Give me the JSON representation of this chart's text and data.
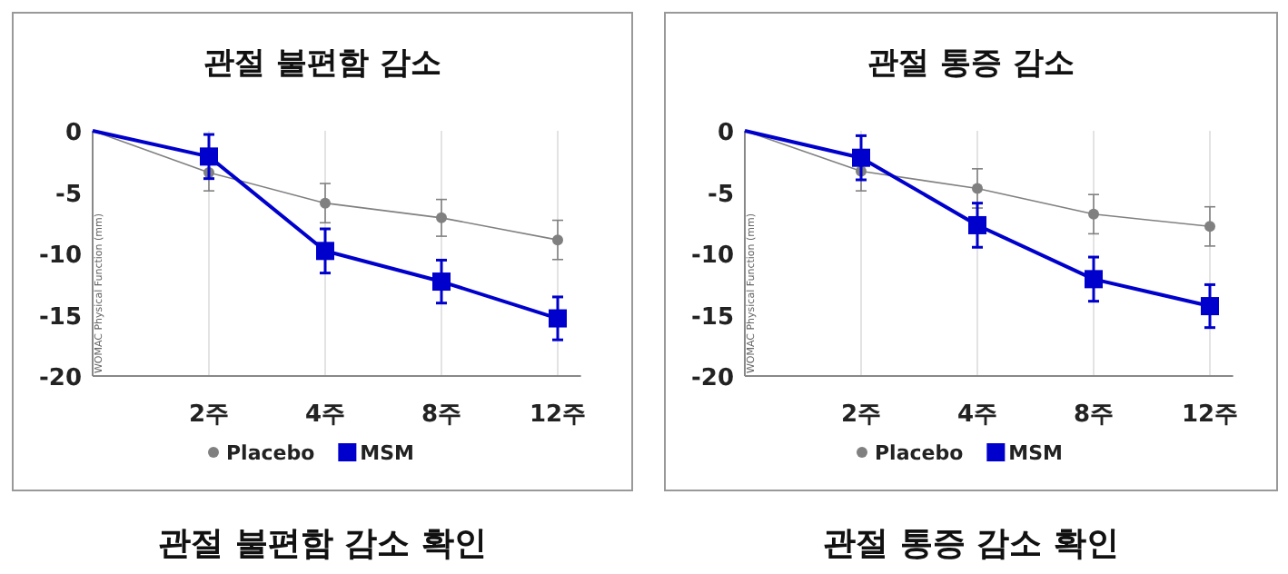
{
  "chart_data": [
    {
      "type": "line",
      "title": "관절 불편함 감소",
      "ylabel": "WOMAC Physical Function (mm)",
      "categories": [
        null,
        "2주",
        "4주",
        "8주",
        "12주"
      ],
      "ylim": [
        -20,
        0
      ],
      "yticks": [
        0,
        -5,
        -10,
        -15,
        -20
      ],
      "grid": "x",
      "legend": "bottom",
      "annotations": [
        "관절 불편함 감소 확인"
      ],
      "series": [
        {
          "name": "Placebo",
          "color": "#808080",
          "marker": "circle",
          "values": [
            0,
            -3.4,
            -5.9,
            -7.1,
            -8.9
          ],
          "errors": [
            null,
            1.5,
            1.6,
            1.5,
            1.6
          ]
        },
        {
          "name": "MSM",
          "color": "#0000cc",
          "marker": "square",
          "values": [
            0,
            -2.1,
            -9.8,
            -12.3,
            -15.3
          ],
          "errors": [
            null,
            1.8,
            1.8,
            1.75,
            1.75
          ]
        }
      ]
    },
    {
      "type": "line",
      "title": "관절 통증 감소",
      "ylabel": "WOMAC Physical Function (mm)",
      "categories": [
        null,
        "2주",
        "4주",
        "8주",
        "12주"
      ],
      "ylim": [
        -20,
        0
      ],
      "yticks": [
        0,
        -5,
        -10,
        -15,
        -20
      ],
      "grid": "x",
      "legend": "bottom",
      "annotations": [
        "관절 통증 감소 확인"
      ],
      "series": [
        {
          "name": "Placebo",
          "color": "#808080",
          "marker": "circle",
          "values": [
            0,
            -3.3,
            -4.7,
            -6.8,
            -7.8
          ],
          "errors": [
            null,
            1.6,
            1.6,
            1.6,
            1.6
          ]
        },
        {
          "name": "MSM",
          "color": "#0000cc",
          "marker": "square",
          "values": [
            0,
            -2.2,
            -7.7,
            -12.1,
            -14.3
          ],
          "errors": [
            null,
            1.8,
            1.8,
            1.8,
            1.75
          ]
        }
      ]
    }
  ]
}
